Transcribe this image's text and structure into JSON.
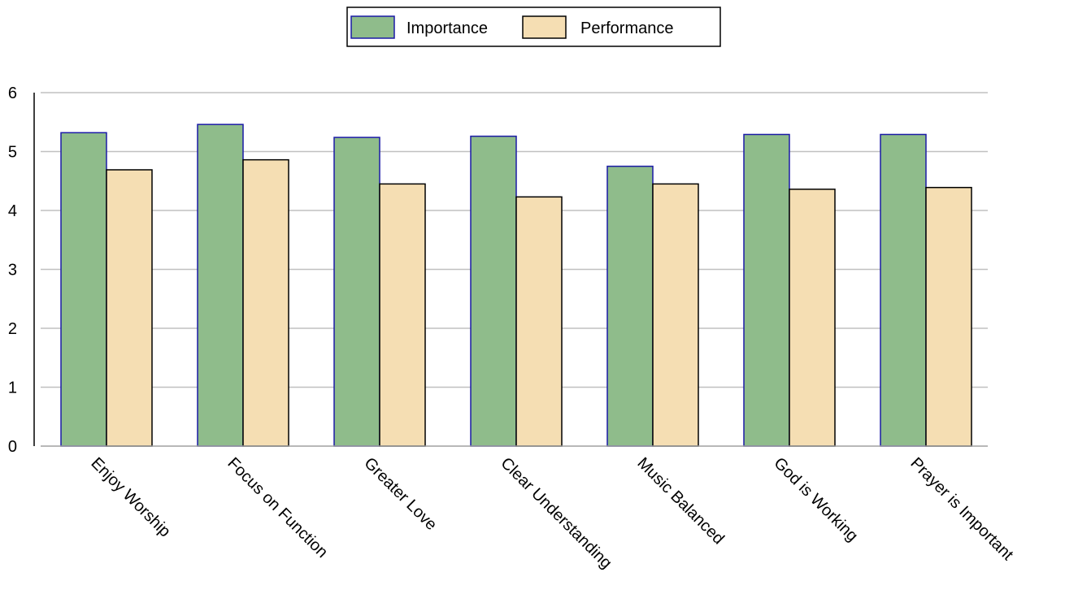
{
  "chart_data": {
    "type": "bar",
    "categories": [
      "Enjoy Worship",
      "Focus on Function",
      "Greater Love",
      "Clear Understanding",
      "Music Balanced",
      "God is Working",
      "Prayer is Important"
    ],
    "series": [
      {
        "name": "Importance",
        "values": [
          5.32,
          5.46,
          5.24,
          5.26,
          4.75,
          5.29,
          5.29
        ],
        "color": "#8fbc8b",
        "stroke": "#1a1aa6"
      },
      {
        "name": "Performance",
        "values": [
          4.69,
          4.86,
          4.45,
          4.23,
          4.45,
          4.36,
          4.39
        ],
        "color": "#f5deb3",
        "stroke": "#000000"
      }
    ],
    "title": "",
    "xlabel": "",
    "ylabel": "",
    "ylim": [
      0,
      6
    ],
    "yticks": [
      "0",
      "1",
      "2",
      "3",
      "4",
      "5",
      "6"
    ],
    "grid": true,
    "legend_position": "top-center"
  }
}
